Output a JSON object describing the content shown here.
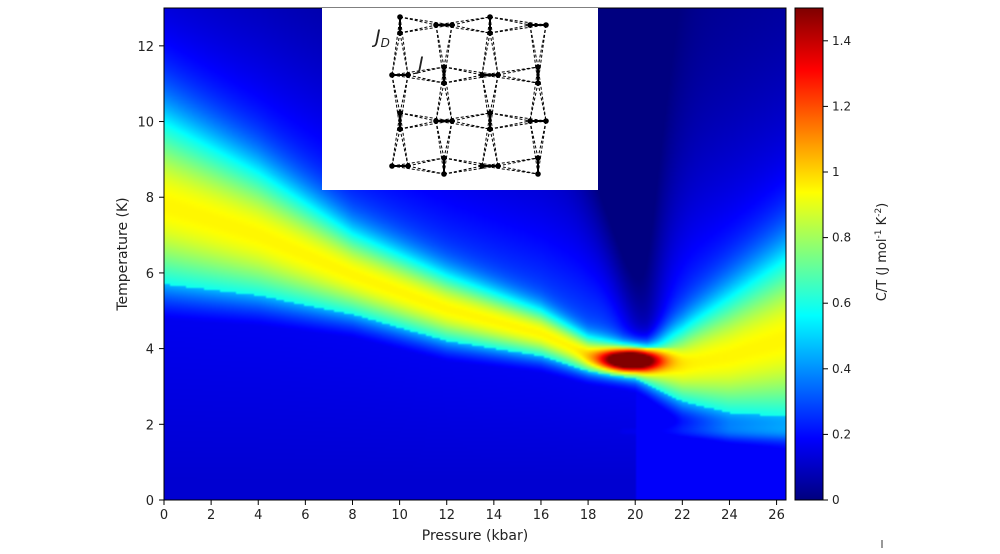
{
  "chart_data": {
    "type": "heatmap",
    "xlabel": "Pressure (kbar)",
    "ylabel": "Temperature (K)",
    "xlim": [
      0,
      26.4
    ],
    "ylim": [
      0,
      13
    ],
    "x_ticks": [
      "0",
      "2",
      "4",
      "6",
      "8",
      "10",
      "12",
      "14",
      "16",
      "18",
      "20",
      "22",
      "24",
      "26"
    ],
    "y_ticks": [
      "0",
      "2",
      "4",
      "6",
      "8",
      "10",
      "12"
    ],
    "colorbar": {
      "label": "C/T (J mol",
      "label_sup1": "-1",
      "label_mid": " K",
      "label_sup2": "-2",
      "label_end": ")",
      "range": [
        0,
        1.5
      ],
      "ticks": [
        "0",
        "0.2",
        "0.4",
        "0.6",
        "0.8",
        "1",
        "1.2",
        "1.4"
      ],
      "colormap": "jet"
    },
    "features": {
      "ridge_upper": [
        [
          0,
          9.9
        ],
        [
          4,
          8.6
        ],
        [
          8,
          7.0
        ],
        [
          12,
          5.9
        ],
        [
          16,
          5.0
        ],
        [
          18,
          4.3
        ],
        [
          19.5,
          4.1
        ],
        [
          20.5,
          4.1
        ],
        [
          22,
          4.5
        ],
        [
          24,
          5.3
        ],
        [
          26.4,
          6.3
        ]
      ],
      "ridge_lower": [
        [
          0,
          5.7
        ],
        [
          4,
          5.4
        ],
        [
          8,
          4.9
        ],
        [
          12,
          4.2
        ],
        [
          16,
          3.8
        ],
        [
          18,
          3.4
        ],
        [
          20,
          3.2
        ],
        [
          22,
          2.6
        ],
        [
          24,
          2.3
        ],
        [
          26.4,
          2.2
        ]
      ],
      "peak": {
        "x": 19.8,
        "y": 3.7,
        "value": 1.5
      },
      "vertical_arm": {
        "x_at_top": 18.7,
        "x_at_bottom": 20.5,
        "y_from": 4.2,
        "y_to": 13
      },
      "low_plateau": {
        "x_from": 18,
        "x_to": 26.4,
        "y": 1.8,
        "value": 0.45
      }
    },
    "inset": {
      "labels": {
        "jd": "J",
        "jd_sub": "D",
        "j": "J"
      }
    }
  }
}
